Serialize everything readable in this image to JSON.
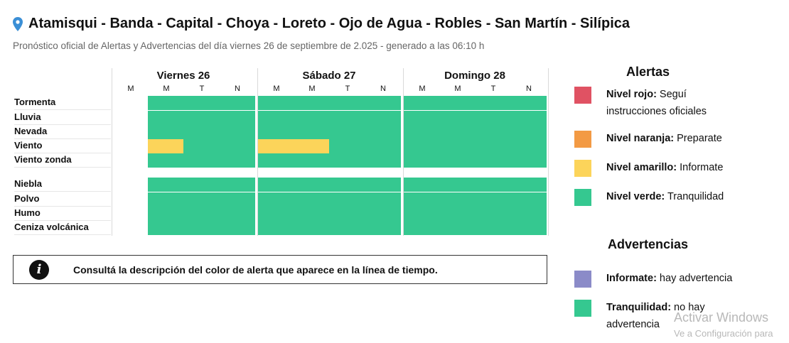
{
  "header": {
    "title": "Atamisqui - Banda - Capital - Choya - Loreto - Ojo de Agua - Robles - San Martín - Silípica",
    "subtitle": "Pronóstico oficial de Alertas y Advertencias del día viernes 26 de septiembre de 2.025 - generado a las 06:10 h",
    "pin_icon": "map-pin-icon"
  },
  "colors": {
    "rojo": "#e05263",
    "naranja": "#f39a44",
    "amarillo": "#fcd45a",
    "verde": "#35c890",
    "violeta": "#8b8bc8"
  },
  "timeline": {
    "days": [
      {
        "label": "Viernes 26",
        "slots": [
          "M",
          "M",
          "T",
          "N"
        ]
      },
      {
        "label": "Sábado 27",
        "slots": [
          "M",
          "M",
          "T",
          "N"
        ]
      },
      {
        "label": "Domingo 28",
        "slots": [
          "M",
          "M",
          "T",
          "N"
        ]
      }
    ],
    "rows": [
      {
        "label": "Tormenta",
        "levels": [
          "none",
          "verde",
          "verde",
          "verde",
          "verde",
          "verde",
          "verde",
          "verde",
          "verde",
          "verde",
          "verde",
          "verde"
        ]
      },
      {
        "label": "Lluvia",
        "levels": [
          "none",
          "verde",
          "verde",
          "verde",
          "verde",
          "verde",
          "verde",
          "verde",
          "verde",
          "verde",
          "verde",
          "verde"
        ]
      },
      {
        "label": "Nevada",
        "levels": [
          "none",
          "verde",
          "verde",
          "verde",
          "verde",
          "verde",
          "verde",
          "verde",
          "verde",
          "verde",
          "verde",
          "verde"
        ]
      },
      {
        "label": "Viento",
        "levels": [
          "none",
          "amarillo",
          "verde",
          "verde",
          "amarillo",
          "amarillo",
          "verde",
          "verde",
          "verde",
          "verde",
          "verde",
          "verde"
        ]
      },
      {
        "label": "Viento zonda",
        "levels": [
          "none",
          "verde",
          "verde",
          "verde",
          "verde",
          "verde",
          "verde",
          "verde",
          "verde",
          "verde",
          "verde",
          "verde"
        ]
      },
      {
        "label": "Niebla",
        "levels": [
          "none",
          "verde",
          "verde",
          "verde",
          "verde",
          "verde",
          "verde",
          "verde",
          "verde",
          "verde",
          "verde",
          "verde"
        ]
      },
      {
        "label": "Polvo",
        "levels": [
          "none",
          "verde",
          "verde",
          "verde",
          "verde",
          "verde",
          "verde",
          "verde",
          "verde",
          "verde",
          "verde",
          "verde"
        ]
      },
      {
        "label": "Humo",
        "levels": [
          "none",
          "verde",
          "verde",
          "verde",
          "verde",
          "verde",
          "verde",
          "verde",
          "verde",
          "verde",
          "verde",
          "verde"
        ]
      },
      {
        "label": "Ceniza volcánica",
        "levels": [
          "none",
          "verde",
          "verde",
          "verde",
          "verde",
          "verde",
          "verde",
          "verde",
          "verde",
          "verde",
          "verde",
          "verde"
        ]
      }
    ]
  },
  "info": {
    "icon": "info-icon",
    "text": "Consultá la descripción del color de alerta que aparece en la línea de tiempo."
  },
  "legend": {
    "alertas_title": "Alertas",
    "alertas": [
      {
        "key": "rojo",
        "name": "Nivel rojo:",
        "desc": "Seguí instrucciones oficiales"
      },
      {
        "key": "naranja",
        "name": "Nivel naranja:",
        "desc": "Preparate"
      },
      {
        "key": "amarillo",
        "name": "Nivel amarillo:",
        "desc": "Informate"
      },
      {
        "key": "verde",
        "name": "Nivel verde:",
        "desc": "Tranquilidad"
      }
    ],
    "advertencias_title": "Advertencias",
    "advertencias": [
      {
        "key": "violeta",
        "name": "Informate:",
        "desc": "hay advertencia"
      },
      {
        "key": "verde",
        "name": "Tranquilidad:",
        "desc": "no hay advertencia"
      }
    ]
  },
  "watermark": {
    "line1": "Activar Windows",
    "line2": "Ve a Configuración para"
  }
}
